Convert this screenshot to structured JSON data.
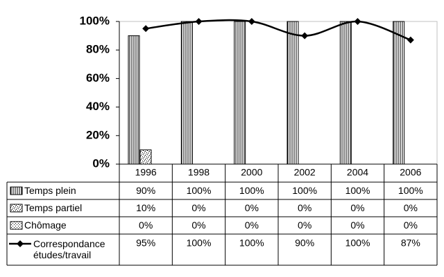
{
  "chart_data": {
    "type": "bar",
    "categories": [
      "1996",
      "1998",
      "2000",
      "2002",
      "2004",
      "2006"
    ],
    "ylim": [
      0,
      100
    ],
    "yticks": [
      {
        "value": 0,
        "label": "0%"
      },
      {
        "value": 20,
        "label": "20%"
      },
      {
        "value": 40,
        "label": "40%"
      },
      {
        "value": 60,
        "label": "60%"
      },
      {
        "value": 80,
        "label": "80%"
      },
      {
        "value": 100,
        "label": "100%"
      }
    ],
    "series": [
      {
        "name": "Temps plein",
        "type": "bar",
        "pattern": "vertical-lines",
        "color": "#000000",
        "values": [
          90,
          100,
          100,
          100,
          100,
          100
        ],
        "value_labels": [
          "90%",
          "100%",
          "100%",
          "100%",
          "100%",
          "100%"
        ]
      },
      {
        "name": "Temps partiel",
        "type": "bar",
        "pattern": "crosses",
        "color": "#000000",
        "values": [
          10,
          0,
          0,
          0,
          0,
          0
        ],
        "value_labels": [
          "10%",
          "0%",
          "0%",
          "0%",
          "0%",
          "0%"
        ]
      },
      {
        "name": "Chômage",
        "type": "bar",
        "pattern": "dots",
        "color": "#000000",
        "values": [
          0,
          0,
          0,
          0,
          0,
          0
        ],
        "value_labels": [
          "0%",
          "0%",
          "0%",
          "0%",
          "0%",
          "0%"
        ]
      },
      {
        "name": "Correspondance études/travail",
        "type": "line",
        "marker": "diamond",
        "smooth": true,
        "color": "#000000",
        "values": [
          95,
          100,
          100,
          90,
          100,
          87
        ],
        "value_labels": [
          "95%",
          "100%",
          "100%",
          "90%",
          "100%",
          "87%"
        ]
      }
    ]
  }
}
